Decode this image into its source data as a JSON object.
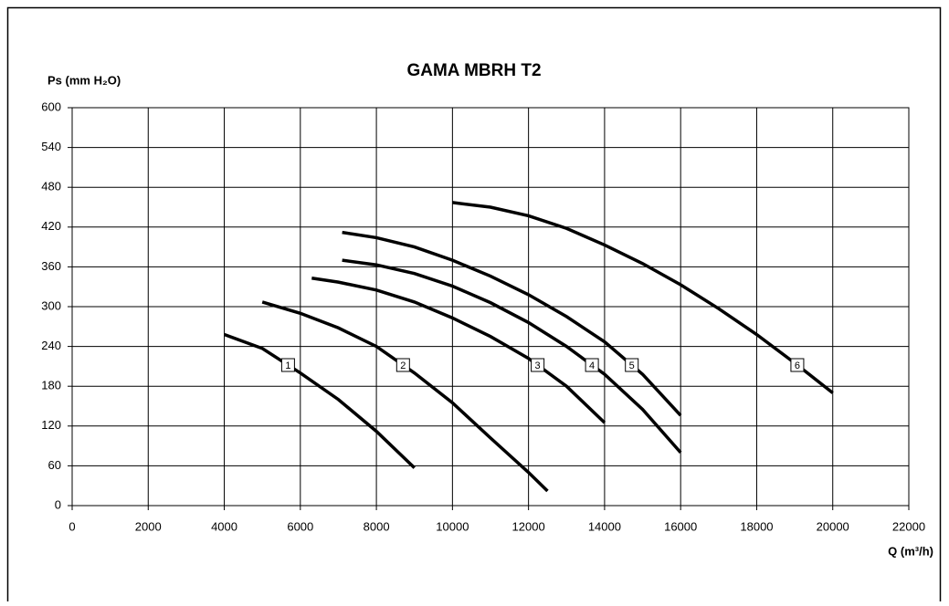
{
  "chart_data": {
    "type": "line",
    "title": "GAMA MBRH T2",
    "y_label": "Ps (mm H₂O)",
    "x_label": "Q (m³/h)",
    "xlim": [
      0,
      22000
    ],
    "xticks": [
      0,
      2000,
      4000,
      6000,
      8000,
      10000,
      12000,
      14000,
      16000,
      18000,
      20000,
      22000
    ],
    "ylim": [
      0,
      600
    ],
    "yticks": [
      0,
      60,
      120,
      180,
      240,
      300,
      360,
      420,
      480,
      540,
      600
    ],
    "grid": true,
    "series": [
      {
        "name": "1",
        "color": "#000000",
        "x": [
          4000,
          5000,
          6000,
          7000,
          8000,
          9000
        ],
        "values": [
          258,
          237,
          200,
          160,
          112,
          57
        ]
      },
      {
        "name": "2",
        "color": "#000000",
        "x": [
          5000,
          6000,
          7000,
          8000,
          9000,
          10000,
          11000,
          12000,
          12500
        ],
        "values": [
          307,
          290,
          268,
          240,
          200,
          155,
          102,
          50,
          22
        ]
      },
      {
        "name": "3",
        "color": "#000000",
        "x": [
          6300,
          7000,
          8000,
          9000,
          10000,
          11000,
          12000,
          13000,
          14000
        ],
        "values": [
          343,
          337,
          325,
          307,
          283,
          255,
          222,
          180,
          125
        ]
      },
      {
        "name": "4",
        "color": "#000000",
        "x": [
          7100,
          8000,
          9000,
          10000,
          11000,
          12000,
          13000,
          14000,
          15000,
          16000
        ],
        "values": [
          370,
          363,
          350,
          331,
          306,
          276,
          240,
          198,
          145,
          80
        ]
      },
      {
        "name": "5",
        "color": "#000000",
        "x": [
          7100,
          8000,
          9000,
          10000,
          11000,
          12000,
          13000,
          14000,
          15000,
          16000
        ],
        "values": [
          412,
          404,
          390,
          370,
          346,
          318,
          285,
          247,
          198,
          136
        ]
      },
      {
        "name": "6",
        "color": "#000000",
        "x": [
          10000,
          11000,
          12000,
          13000,
          14000,
          15000,
          16000,
          17000,
          18000,
          19000,
          20000
        ],
        "values": [
          457,
          450,
          437,
          418,
          393,
          365,
          333,
          297,
          258,
          215,
          170
        ]
      }
    ]
  }
}
